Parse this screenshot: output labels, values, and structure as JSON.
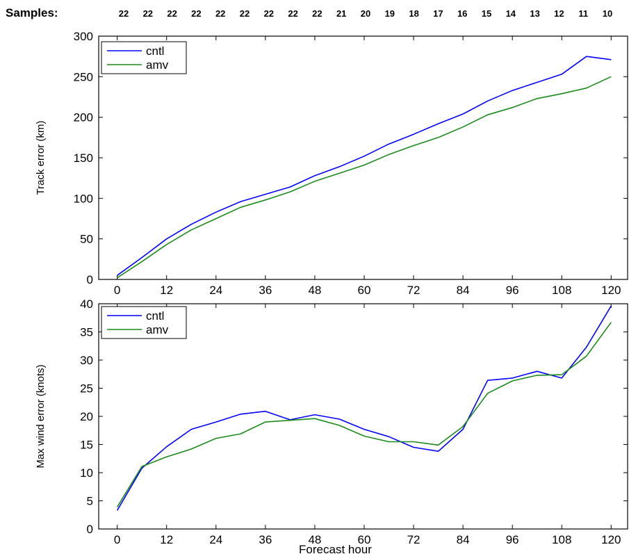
{
  "samples": {
    "label": "Samples:",
    "counts": [
      "22",
      "22",
      "22",
      "22",
      "22",
      "22",
      "22",
      "22",
      "22",
      "21",
      "20",
      "19",
      "18",
      "17",
      "16",
      "15",
      "14",
      "13",
      "12",
      "11",
      "10"
    ]
  },
  "chart_data": [
    {
      "type": "line",
      "title": "",
      "xlabel": "",
      "ylabel": "Track error (km)",
      "x": [
        0,
        6,
        12,
        18,
        24,
        30,
        36,
        42,
        48,
        54,
        60,
        66,
        72,
        78,
        84,
        90,
        96,
        102,
        108,
        114,
        120
      ],
      "xticks": [
        "0",
        "12",
        "24",
        "36",
        "48",
        "60",
        "72",
        "84",
        "96",
        "108",
        "120"
      ],
      "yticks": [
        "0",
        "50",
        "100",
        "150",
        "200",
        "250",
        "300"
      ],
      "xlim": [
        -4.5,
        124
      ],
      "ylim": [
        0,
        300
      ],
      "grid": false,
      "legend": "top-left",
      "series": [
        {
          "name": "cntl",
          "color": "#0000ff",
          "values": [
            5,
            27,
            50,
            68,
            83,
            96,
            105,
            114,
            128,
            139,
            152,
            167,
            179,
            192,
            204,
            220,
            233,
            243,
            253,
            275,
            271
          ]
        },
        {
          "name": "amv",
          "color": "#1a8a1a",
          "values": [
            2,
            22,
            43,
            61,
            75,
            89,
            98,
            108,
            121,
            131,
            141,
            154,
            165,
            175,
            188,
            203,
            212,
            223,
            229,
            236,
            250
          ]
        }
      ]
    },
    {
      "type": "line",
      "title": "",
      "xlabel": "Forecast hour",
      "ylabel": "Max wind error (knots)",
      "x": [
        0,
        6,
        12,
        18,
        24,
        30,
        36,
        42,
        48,
        54,
        60,
        66,
        72,
        78,
        84,
        90,
        96,
        102,
        108,
        114,
        120
      ],
      "xticks": [
        "0",
        "12",
        "24",
        "36",
        "48",
        "60",
        "72",
        "84",
        "96",
        "108",
        "120"
      ],
      "yticks": [
        "0",
        "5",
        "10",
        "15",
        "20",
        "25",
        "30",
        "35",
        "40"
      ],
      "xlim": [
        -4.5,
        124
      ],
      "ylim": [
        0,
        40
      ],
      "grid": false,
      "legend": "top-left",
      "series": [
        {
          "name": "cntl",
          "color": "#0000ff",
          "values": [
            3.3,
            10.8,
            14.6,
            17.7,
            19.0,
            20.4,
            20.9,
            19.4,
            20.3,
            19.5,
            17.7,
            16.4,
            14.5,
            13.8,
            17.7,
            26.4,
            26.8,
            28.0,
            26.8,
            32.3,
            39.6
          ]
        },
        {
          "name": "amv",
          "color": "#1a8a1a",
          "values": [
            3.9,
            11.1,
            12.8,
            14.2,
            16.1,
            16.9,
            19.0,
            19.3,
            19.6,
            18.4,
            16.5,
            15.5,
            15.5,
            14.9,
            18.2,
            24.1,
            26.3,
            27.3,
            27.4,
            30.7,
            36.7
          ]
        }
      ]
    }
  ]
}
